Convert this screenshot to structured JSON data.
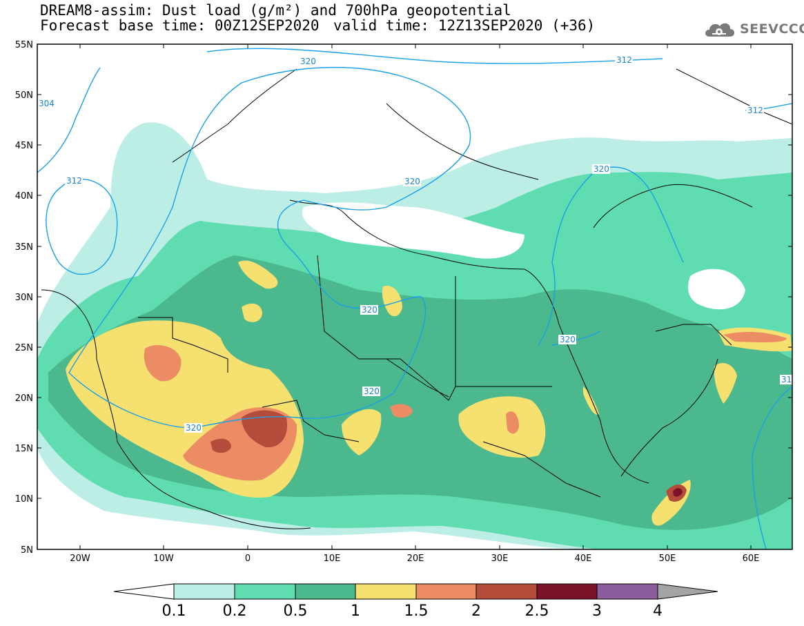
{
  "header": {
    "title_line1": "DREAM8-assim: Dust load (g/m²) and 700hPa geopotential",
    "base_time": "Forecast base time: 00Z12SEP2020",
    "valid_time": "valid time: 12Z13SEP2020 (+36)"
  },
  "logo": {
    "text": "SEEVCCC",
    "icon": "cloud-gear-icon"
  },
  "map": {
    "lat_labels": [
      "55N",
      "50N",
      "45N",
      "40N",
      "35N",
      "30N",
      "25N",
      "20N",
      "15N",
      "10N",
      "5N"
    ],
    "lon_labels": [
      "20W",
      "10W",
      "0",
      "10E",
      "20E",
      "30E",
      "40E",
      "50E",
      "60E"
    ],
    "contour_labels": [
      "312",
      "320",
      "304",
      "31"
    ]
  },
  "legend": {
    "ticks": [
      "0.1",
      "0.2",
      "0.5",
      "1",
      "1.5",
      "2",
      "2.5",
      "3",
      "4"
    ],
    "colors": [
      "#ffffff",
      "#bdeee6",
      "#5fdcb0",
      "#4bb88e",
      "#f5e070",
      "#ec8c64",
      "#b44c3c",
      "#7a1228",
      "#8c5c9c",
      "#a4a4a4"
    ]
  },
  "colors": {
    "dust_light": "#bdeee6",
    "dust_mid": "#5fdcb0",
    "dust_dark": "#4bb88e",
    "dust_yellow": "#f5e070",
    "dust_orange": "#ec8c64",
    "dust_brown": "#b44c3c",
    "dust_maroon": "#7a1228",
    "contour": "#1aa0e8"
  }
}
